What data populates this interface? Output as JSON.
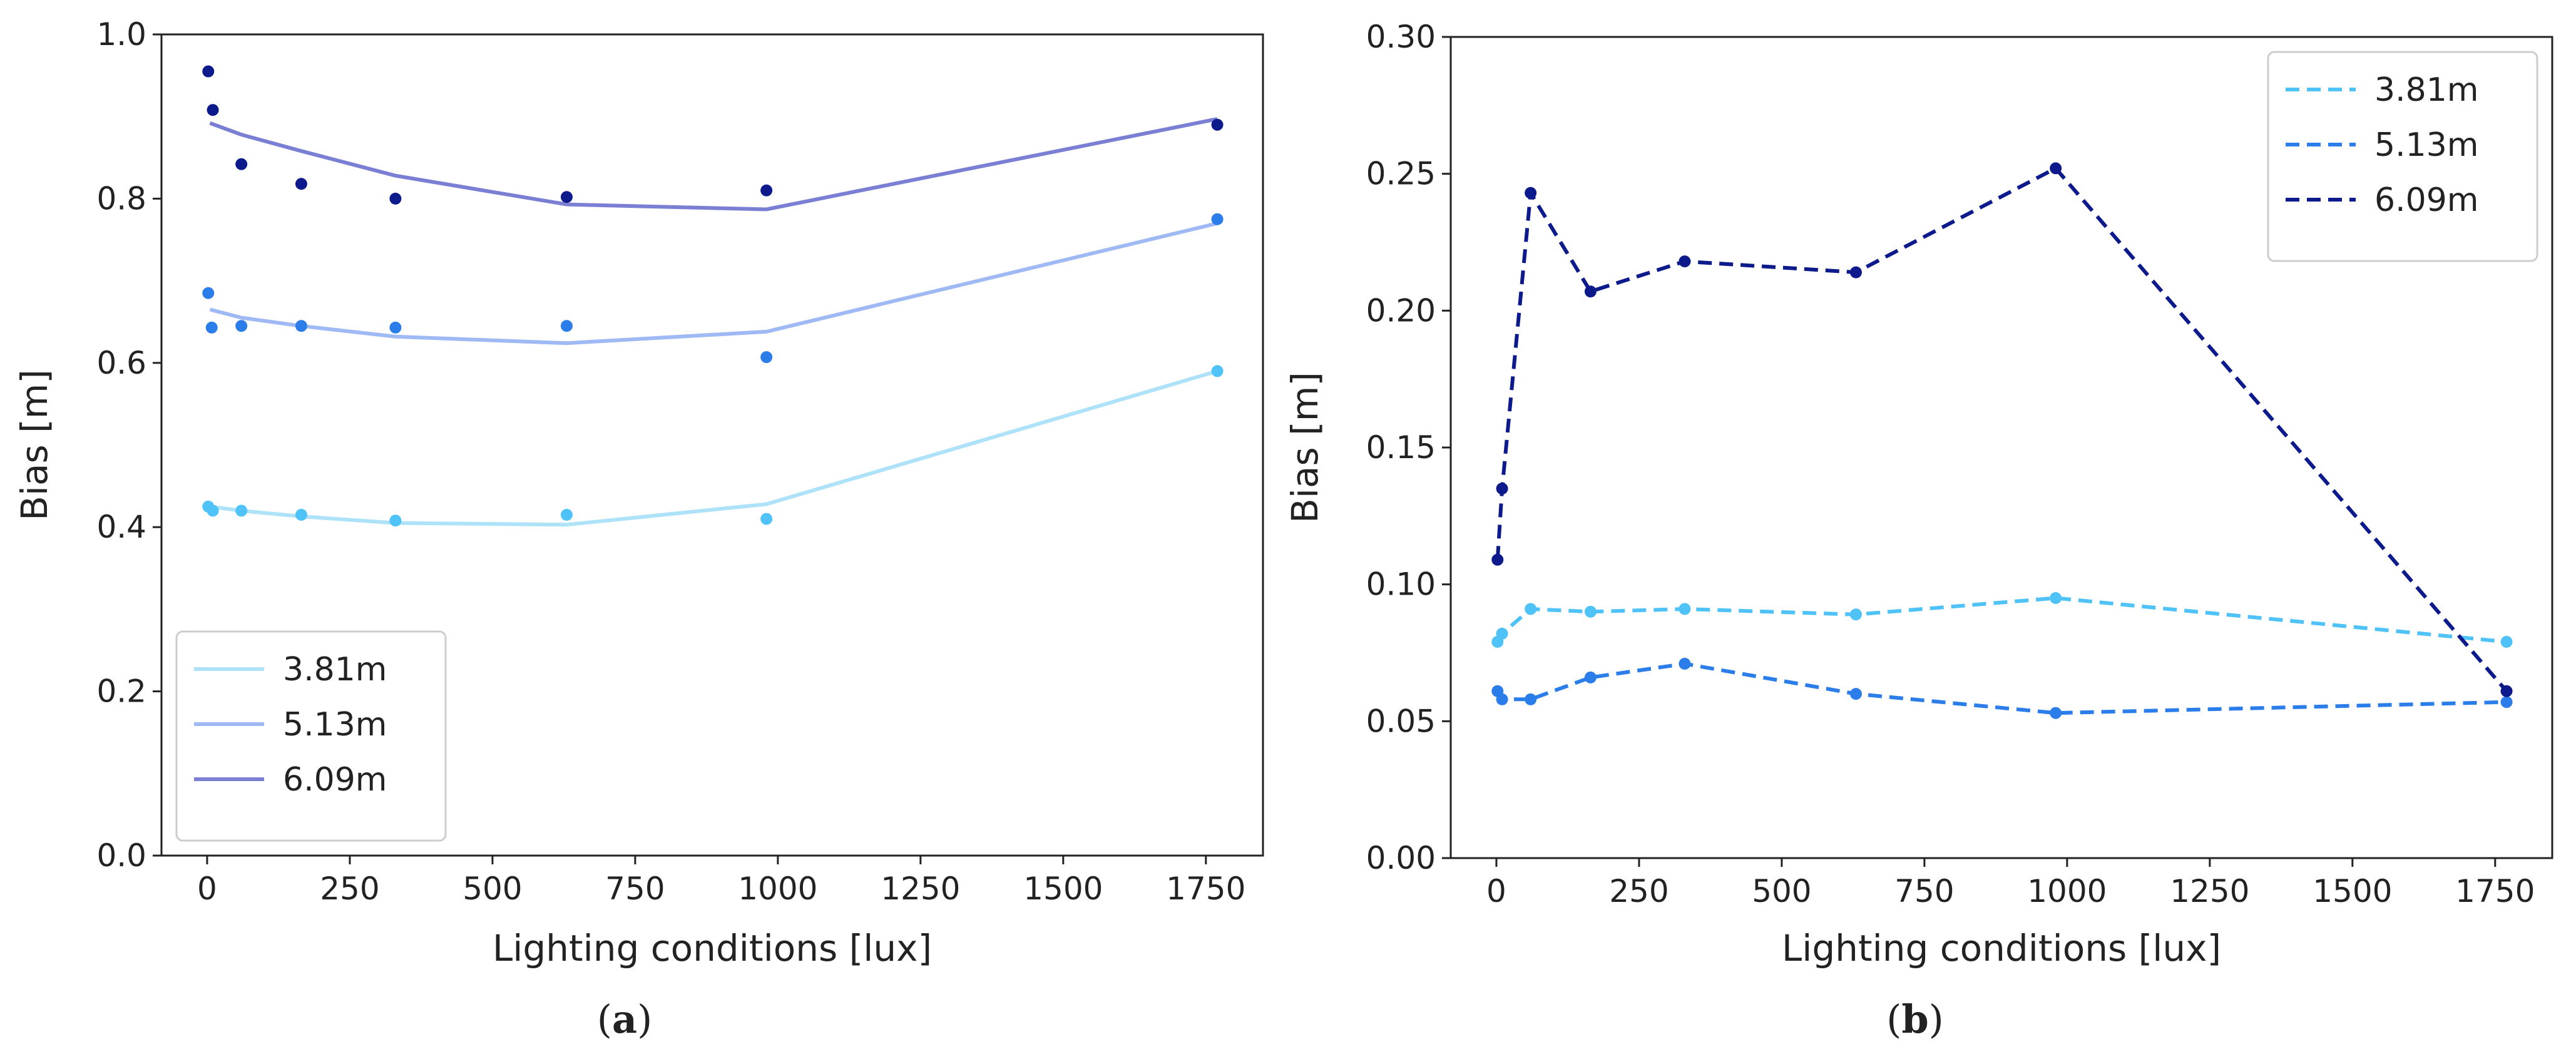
{
  "chart_data": [
    {
      "panel": "a",
      "caption": "(a)",
      "caption_parts": [
        "(",
        "a",
        ")"
      ],
      "type": "line",
      "title": "",
      "xlabel": "Lighting conditions [lux]",
      "ylabel": "Bias [m]",
      "xlim": [
        -80,
        1850
      ],
      "ylim": [
        0.0,
        1.0
      ],
      "xticks": [
        0,
        250,
        500,
        750,
        1000,
        1250,
        1500,
        1750
      ],
      "xtick_labels": [
        "0",
        "250",
        "500",
        "750",
        "1000",
        "1250",
        "1500",
        "1750"
      ],
      "yticks": [
        0.0,
        0.2,
        0.4,
        0.6,
        0.8,
        1.0
      ],
      "ytick_labels": [
        "0.0",
        "0.2",
        "0.4",
        "0.6",
        "0.8",
        "1.0"
      ],
      "legend_position": "lower-left",
      "series": [
        {
          "name": "3.81m",
          "line_color": "#aee2f8",
          "point_color": "#4fc3f7",
          "line_style": "solid",
          "line_x": [
            5,
            60,
            165,
            330,
            630,
            980,
            1770
          ],
          "line_y": [
            0.425,
            0.42,
            0.413,
            0.405,
            0.403,
            0.428,
            0.59
          ],
          "points": [
            [
              2,
              0.425
            ],
            [
              10,
              0.42
            ],
            [
              60,
              0.42
            ],
            [
              165,
              0.415
            ],
            [
              330,
              0.408
            ],
            [
              630,
              0.415
            ],
            [
              980,
              0.41
            ],
            [
              1770,
              0.59
            ]
          ]
        },
        {
          "name": "5.13m",
          "line_color": "#9fb9f5",
          "point_color": "#2b7de9",
          "line_style": "solid",
          "line_x": [
            5,
            60,
            165,
            330,
            630,
            980,
            1770
          ],
          "line_y": [
            0.665,
            0.655,
            0.645,
            0.632,
            0.624,
            0.638,
            0.77
          ],
          "points": [
            [
              2,
              0.685
            ],
            [
              8,
              0.643
            ],
            [
              60,
              0.645
            ],
            [
              165,
              0.645
            ],
            [
              330,
              0.643
            ],
            [
              630,
              0.645
            ],
            [
              980,
              0.607
            ],
            [
              1770,
              0.775
            ]
          ]
        },
        {
          "name": "6.09m",
          "line_color": "#7b7fd4",
          "point_color": "#0d1a8c",
          "line_style": "solid",
          "line_x": [
            5,
            60,
            165,
            330,
            630,
            980,
            1770
          ],
          "line_y": [
            0.892,
            0.878,
            0.858,
            0.828,
            0.793,
            0.787,
            0.897
          ],
          "points": [
            [
              2,
              0.955
            ],
            [
              10,
              0.908
            ],
            [
              60,
              0.842
            ],
            [
              165,
              0.818
            ],
            [
              330,
              0.8
            ],
            [
              630,
              0.802
            ],
            [
              980,
              0.81
            ],
            [
              1770,
              0.89
            ]
          ]
        }
      ]
    },
    {
      "panel": "b",
      "caption": "(b)",
      "caption_parts": [
        "(",
        "b",
        ")"
      ],
      "type": "line",
      "title": "",
      "xlabel": "Lighting conditions [lux]",
      "ylabel": "Bias [m]",
      "xlim": [
        -80,
        1850
      ],
      "ylim": [
        0.0,
        0.3
      ],
      "xticks": [
        0,
        250,
        500,
        750,
        1000,
        1250,
        1500,
        1750
      ],
      "xtick_labels": [
        "0",
        "250",
        "500",
        "750",
        "1000",
        "1250",
        "1500",
        "1750"
      ],
      "yticks": [
        0.0,
        0.05,
        0.1,
        0.15,
        0.2,
        0.25,
        0.3
      ],
      "ytick_labels": [
        "0.00",
        "0.05",
        "0.10",
        "0.15",
        "0.20",
        "0.25",
        "0.30"
      ],
      "legend_position": "upper-right",
      "series": [
        {
          "name": "3.81m",
          "line_color": "#4fc3f7",
          "point_color": "#4fc3f7",
          "line_style": "dashed",
          "line_x": [
            2,
            10,
            60,
            165,
            330,
            630,
            980,
            1770
          ],
          "line_y": [
            0.079,
            0.082,
            0.091,
            0.09,
            0.091,
            0.089,
            0.095,
            0.079
          ],
          "points": [
            [
              2,
              0.079
            ],
            [
              10,
              0.082
            ],
            [
              60,
              0.091
            ],
            [
              165,
              0.09
            ],
            [
              330,
              0.091
            ],
            [
              630,
              0.089
            ],
            [
              980,
              0.095
            ],
            [
              1770,
              0.079
            ]
          ]
        },
        {
          "name": "5.13m",
          "line_color": "#2b7de9",
          "point_color": "#2b7de9",
          "line_style": "dashed",
          "line_x": [
            2,
            10,
            60,
            165,
            330,
            630,
            980,
            1770
          ],
          "line_y": [
            0.061,
            0.058,
            0.058,
            0.066,
            0.071,
            0.06,
            0.053,
            0.057
          ],
          "points": [
            [
              2,
              0.061
            ],
            [
              10,
              0.058
            ],
            [
              60,
              0.058
            ],
            [
              165,
              0.066
            ],
            [
              330,
              0.071
            ],
            [
              630,
              0.06
            ],
            [
              980,
              0.053
            ],
            [
              1770,
              0.057
            ]
          ]
        },
        {
          "name": "6.09m",
          "line_color": "#0d1a8c",
          "point_color": "#0d1a8c",
          "line_style": "dashed",
          "line_x": [
            2,
            10,
            60,
            165,
            330,
            630,
            980,
            1770
          ],
          "line_y": [
            0.109,
            0.135,
            0.243,
            0.207,
            0.218,
            0.214,
            0.252,
            0.061
          ],
          "points": [
            [
              2,
              0.109
            ],
            [
              10,
              0.135
            ],
            [
              60,
              0.243
            ],
            [
              165,
              0.207
            ],
            [
              330,
              0.218
            ],
            [
              630,
              0.214
            ],
            [
              980,
              0.252
            ],
            [
              1770,
              0.061
            ]
          ]
        }
      ]
    }
  ]
}
